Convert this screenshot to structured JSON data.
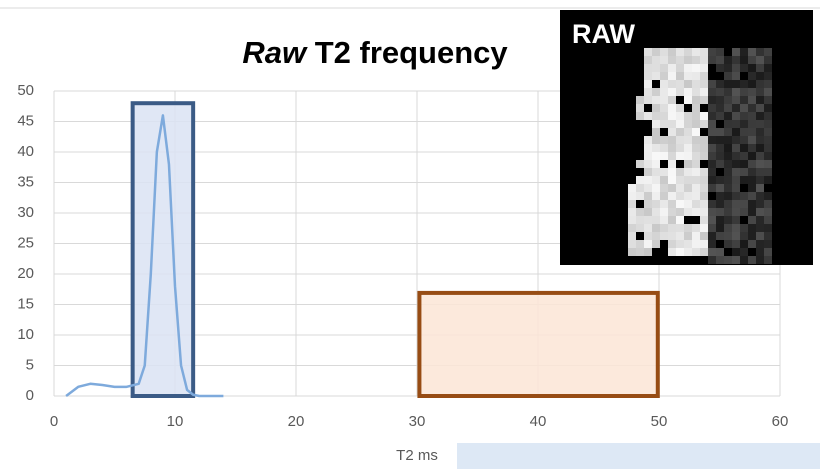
{
  "chart_data": {
    "type": "line",
    "title_parts": [
      "Raw",
      "T2 frequency"
    ],
    "x_label": "T2 ms",
    "inset_label": "RAW",
    "xlim": [
      0,
      60
    ],
    "xticks": [
      0,
      10,
      20,
      30,
      40,
      50,
      60
    ],
    "ylim": [
      0,
      50
    ],
    "yticks": [
      0,
      5,
      10,
      15,
      20,
      25,
      30,
      35,
      40,
      45,
      50
    ],
    "grid": true,
    "series": [
      {
        "color": "#7eaadc",
        "x": [
          1,
          2,
          3,
          4,
          5,
          6,
          7,
          7.5,
          8,
          8.5,
          9,
          9.5,
          10,
          10.5,
          11,
          11.5,
          12,
          13,
          14
        ],
        "values": [
          0,
          1.5,
          2,
          1.8,
          1.5,
          1.5,
          2,
          5,
          20,
          40,
          46,
          38,
          18,
          5,
          1,
          0.2,
          0,
          0,
          0
        ]
      }
    ],
    "highlights": [
      {
        "xrange": [
          6.5,
          11.5
        ],
        "yrange": [
          0,
          48
        ],
        "fill": "#dae3f3",
        "stroke": "#3b5b86"
      },
      {
        "xrange": [
          30.2,
          49.9
        ],
        "yrange": [
          0,
          16.9
        ],
        "fill": "#fbe5d6",
        "stroke": "#974c14"
      }
    ]
  }
}
